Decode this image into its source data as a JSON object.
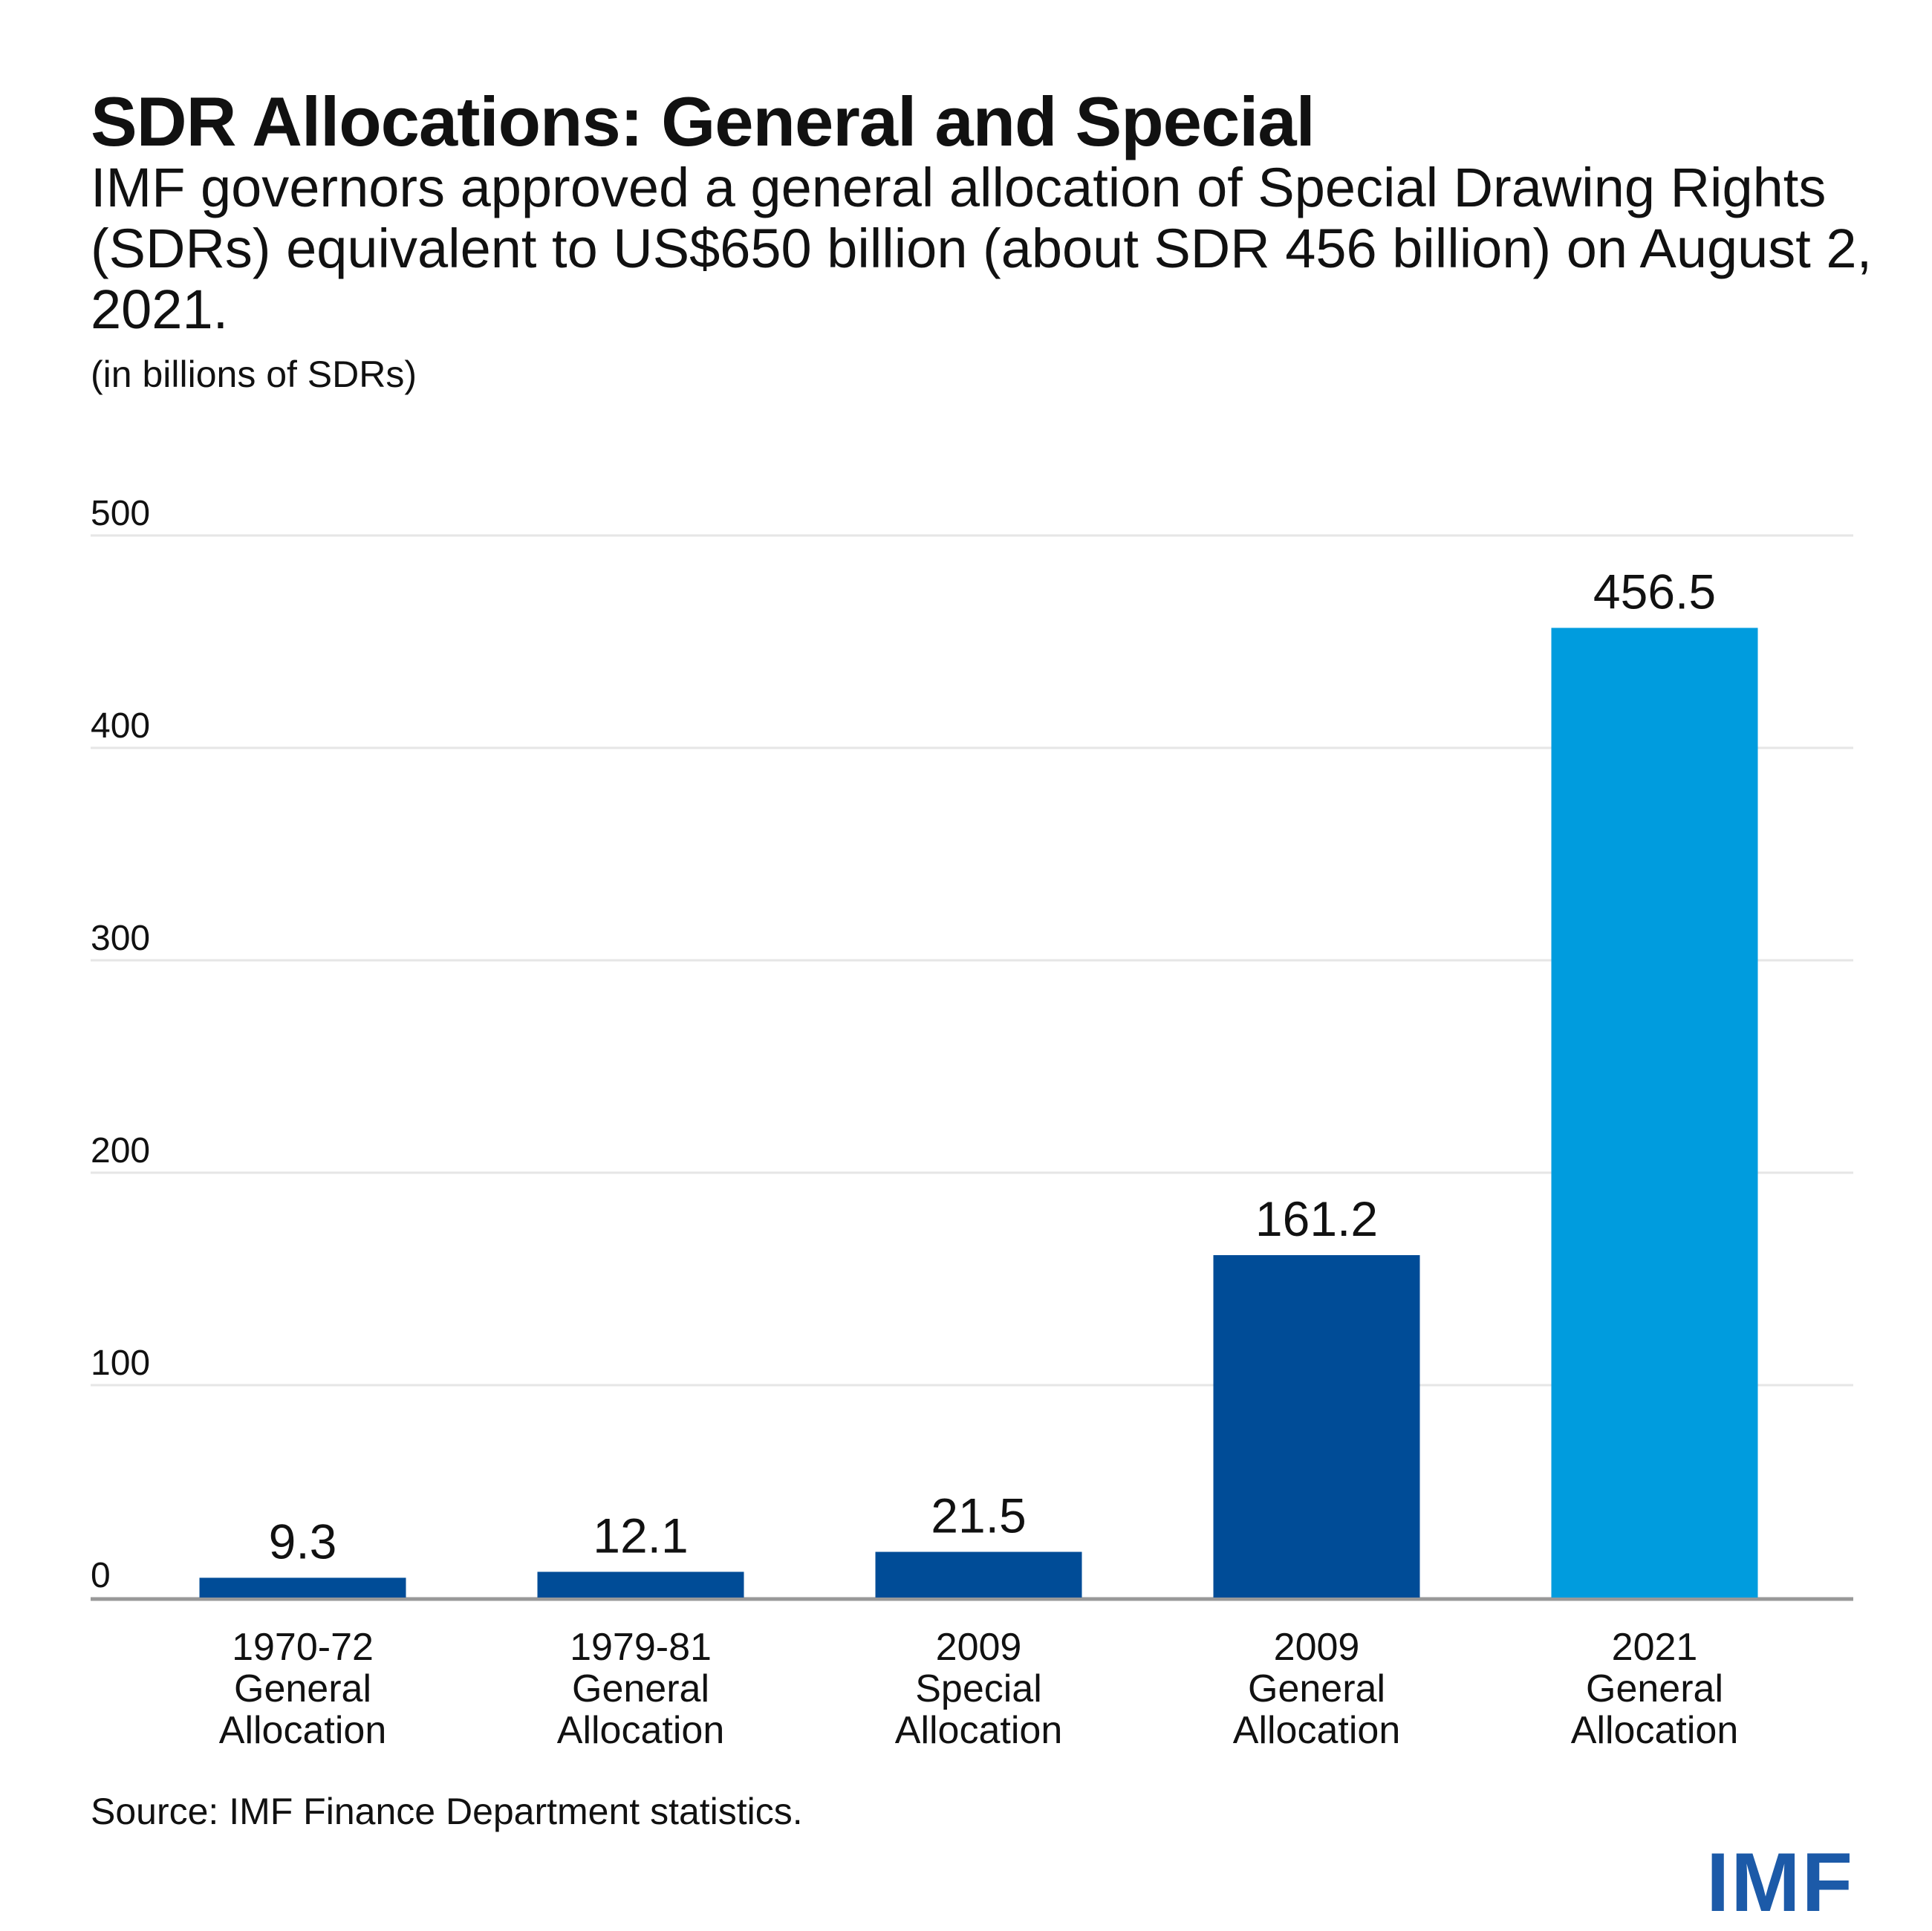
{
  "header": {
    "title": "SDR Allocations: General and Special",
    "subtitle": "IMF governors approved a general allocation of Special Drawing Rights (SDRs) equivalent to US$650 billion (about SDR 456 billion) on August 2, 2021.",
    "unit": "(in billions of SDRs)"
  },
  "footer": {
    "source": "Source: IMF Finance Department statistics.",
    "logo": "IMF"
  },
  "colors": {
    "dark_bar": "#004c97",
    "highlight_bar": "#009cde",
    "gridline": "#e6e6e6",
    "axis": "#999999"
  },
  "chart_data": {
    "type": "bar",
    "title": "SDR Allocations: General and Special",
    "ylabel": "(in billions of SDRs)",
    "xlabel": "",
    "ylim": [
      0,
      500
    ],
    "yticks": [
      0,
      100,
      200,
      300,
      400,
      500
    ],
    "categories": [
      [
        "1970-72",
        "General",
        "Allocation"
      ],
      [
        "1979-81",
        "General",
        "Allocation"
      ],
      [
        "2009",
        "Special",
        "Allocation"
      ],
      [
        "2009",
        "General",
        "Allocation"
      ],
      [
        "2021",
        "General",
        "Allocation"
      ]
    ],
    "values": [
      9.3,
      12.1,
      21.5,
      161.2,
      456.5
    ],
    "value_labels": [
      "9.3",
      "12.1",
      "21.5",
      "161.2",
      "456.5"
    ],
    "highlight_index": 4,
    "grid": true,
    "legend": "none"
  }
}
